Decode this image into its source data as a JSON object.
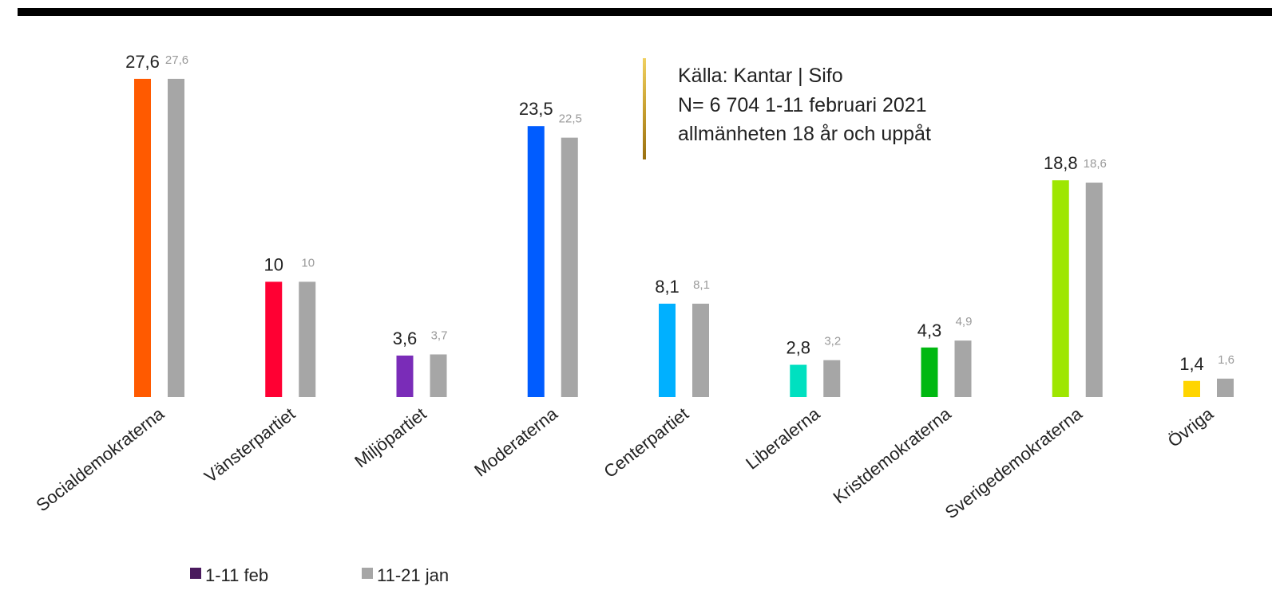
{
  "chart_data": {
    "type": "bar",
    "annotations": [
      "Källa: Kantar | Sifo",
      "N= 6 704  1-11 februari 2021",
      "allmänheten 18 år och uppåt"
    ],
    "categories": [
      "Socialdemokraterna",
      "Vänsterpartiet",
      "Miljöpartiet",
      "Moderaterna",
      "Centerpartiet",
      "Liberalerna",
      "Kristdemokraterna",
      "Sverigedemokraterna",
      "Övriga"
    ],
    "series": [
      {
        "name": "1-11 feb",
        "color": "#4a1a5e",
        "colors": [
          "#ff5a00",
          "#ff0033",
          "#7a2cb8",
          "#005cff",
          "#00b0ff",
          "#00e0c0",
          "#00b811",
          "#9ee600",
          "#ffd500"
        ],
        "values": [
          27.6,
          10,
          3.6,
          23.5,
          8.1,
          2.8,
          4.3,
          18.8,
          1.4
        ],
        "value_labels": [
          "27,6",
          "10",
          "3,6",
          "23,5",
          "8,1",
          "2,8",
          "4,3",
          "18,8",
          "1,4"
        ]
      },
      {
        "name": "11-21 jan",
        "color": "#a6a6a6",
        "values": [
          27.6,
          10,
          3.7,
          22.5,
          8.1,
          3.2,
          4.9,
          18.6,
          1.6
        ],
        "value_labels": [
          "27,6",
          "10",
          "3,7",
          "22,5",
          "8,1",
          "3,2",
          "4,9",
          "18,6",
          "1,6"
        ]
      }
    ]
  }
}
